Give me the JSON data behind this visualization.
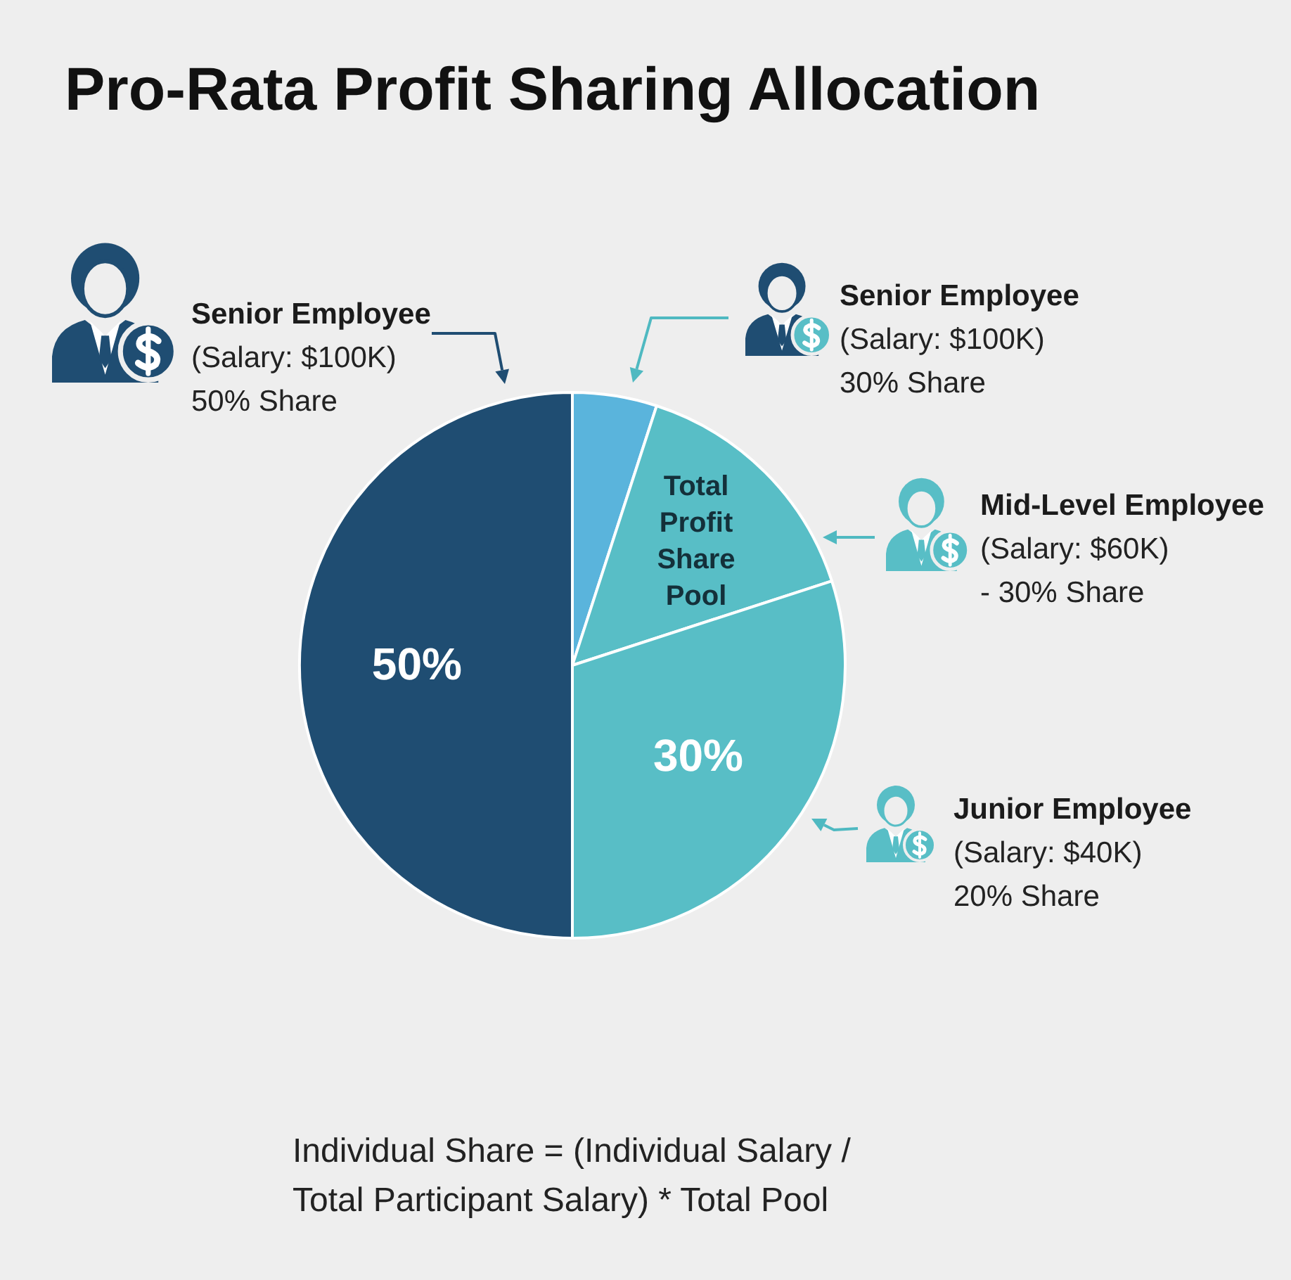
{
  "chart_data": {
    "type": "pie",
    "title": "Pro-Rata Profit Sharing Allocation",
    "categories": [
      null,
      null,
      null,
      null
    ],
    "values": [
      5,
      15,
      30,
      50
    ],
    "colors": [
      "#5ab4dc",
      "#58bec6",
      "#58bec6",
      "#1f4d72"
    ],
    "value_labels": [
      null,
      null,
      "30%",
      "50%"
    ],
    "annotations": [
      "Total Profit Share Pool",
      "Senior Employee\n(Salary: $100K)\n50% Share",
      "Senior Employee\n(Salary: $100K)\n30% Share",
      "Mid-Level Employee\n(Salary: $60K)\n- 30% Share",
      "Junior Employee\n(Salary: $40K)\n20% Share",
      "Individual Share = (Individual Salary /\nTotal Participant Salary) * Total Pool"
    ]
  }
}
